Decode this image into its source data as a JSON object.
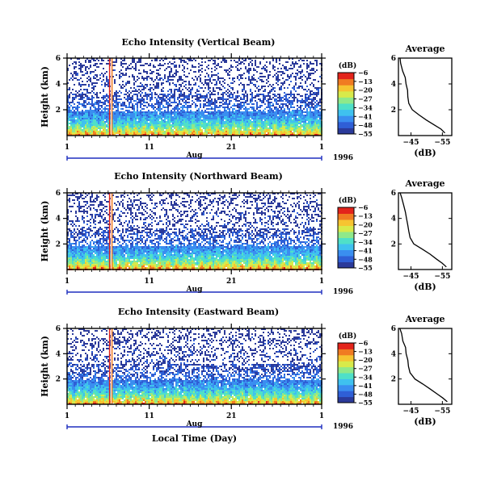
{
  "colors": {
    "colormap": [
      "#2b3a9a",
      "#2f5fd6",
      "#3a8ef0",
      "#3fc1ef",
      "#4fe0c8",
      "#8fe98a",
      "#d8ea4a",
      "#f6c431",
      "#f07b22",
      "#e3241b"
    ],
    "profile_line": "#000000",
    "axis": "#000000",
    "date_axis": "#1e2fbf"
  },
  "chart_data": [
    {
      "type": "heatmap",
      "title": "Echo Intensity (Vertical Beam)",
      "ylabel": "Height (km)",
      "yticks": [
        "6",
        "4",
        "2"
      ],
      "ylim": [
        0,
        6
      ],
      "xticks": [
        "1",
        "11",
        "21",
        "1"
      ],
      "xlabel_month": "Aug",
      "year": "1996",
      "colorbar": {
        "unit": "(dB)",
        "ticks": [
          -6,
          -13,
          -20,
          -27,
          -34,
          -41,
          -48,
          -55
        ],
        "range": [
          -55,
          -6
        ]
      },
      "gaps_day": [
        5.2,
        5.4
      ],
      "profile": {
        "title": "Average",
        "xlabel": "(dB)",
        "xticks": [
          "-45",
          "-55"
        ],
        "yticks": [
          "6",
          "4",
          "2"
        ],
        "height_km": [
          6.0,
          5.6,
          5.0,
          4.5,
          4.0,
          3.5,
          3.0,
          2.5,
          2.0,
          1.6,
          1.2,
          0.8,
          0.5,
          0.2
        ],
        "db": [
          -41.5,
          -41.8,
          -42.4,
          -43.1,
          -43.4,
          -43.8,
          -44.0,
          -44.3,
          -45.5,
          -47.5,
          -50.0,
          -52.5,
          -54.5,
          -55.8
        ]
      }
    },
    {
      "type": "heatmap",
      "title": "Echo Intensity (Northward Beam)",
      "ylabel": "Height (km)",
      "yticks": [
        "6",
        "4",
        "2"
      ],
      "ylim": [
        0,
        6
      ],
      "xticks": [
        "1",
        "11",
        "21",
        "1"
      ],
      "xlabel_month": "Aug",
      "year": "1996",
      "colorbar": {
        "unit": "(dB)",
        "ticks": [
          -6,
          -13,
          -20,
          -27,
          -34,
          -41,
          -48,
          -55
        ],
        "range": [
          -55,
          -6
        ]
      },
      "gaps_day": [
        5.2,
        5.4
      ],
      "profile": {
        "title": "Average",
        "xlabel": "(dB)",
        "xticks": [
          "-45",
          "-55"
        ],
        "yticks": [
          "6",
          "4",
          "2"
        ],
        "height_km": [
          6.0,
          5.6,
          5.0,
          4.5,
          4.0,
          3.5,
          3.0,
          2.5,
          2.0,
          1.6,
          1.2,
          0.8,
          0.5,
          0.2
        ],
        "db": [
          -41.6,
          -42.0,
          -42.6,
          -43.2,
          -43.6,
          -44.0,
          -44.3,
          -44.6,
          -46.0,
          -48.5,
          -51.0,
          -53.2,
          -55.0,
          -56.2
        ]
      }
    },
    {
      "type": "heatmap",
      "title": "Echo Intensity (Eastward Beam)",
      "ylabel": "Height (km)",
      "yticks": [
        "6",
        "4",
        "2"
      ],
      "ylim": [
        0,
        6
      ],
      "xticks": [
        "1",
        "11",
        "21",
        "1"
      ],
      "xlabel_month": "Aug",
      "year": "1996",
      "xlabel": "Local Time (Day)",
      "colorbar": {
        "unit": "(dB)",
        "ticks": [
          -6,
          -13,
          -20,
          -27,
          -34,
          -41,
          -48,
          -55
        ],
        "range": [
          -55,
          -6
        ]
      },
      "gaps_day": [
        5.2,
        5.4
      ],
      "profile": {
        "title": "Average",
        "xlabel": "(dB)",
        "xticks": [
          "-45",
          "-55"
        ],
        "yticks": [
          "6",
          "4",
          "2"
        ],
        "height_km": [
          6.0,
          5.6,
          5.0,
          4.5,
          4.0,
          3.5,
          3.0,
          2.5,
          2.0,
          1.6,
          1.2,
          0.8,
          0.5,
          0.2
        ],
        "db": [
          -41.5,
          -41.9,
          -42.5,
          -43.2,
          -43.5,
          -43.9,
          -44.2,
          -44.6,
          -46.2,
          -48.8,
          -51.2,
          -53.5,
          -55.2,
          -56.5
        ]
      }
    }
  ]
}
